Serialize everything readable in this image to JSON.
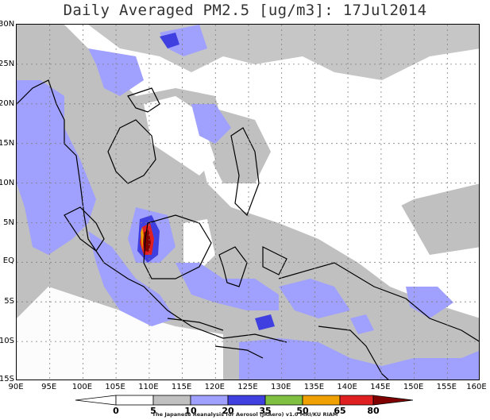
{
  "title": "Daily Averaged PM2.5 [ug/m3]: 17Jul2014",
  "map": {
    "lon_range": [
      90,
      160
    ],
    "lat_range": [
      -15,
      30
    ],
    "y_ticks": [
      "30N",
      "25N",
      "20N",
      "15N",
      "10N",
      "5N",
      "EQ",
      "5S",
      "10S",
      "15S"
    ],
    "x_ticks": [
      "90E",
      "95E",
      "100E",
      "105E",
      "110E",
      "115E",
      "120E",
      "125E",
      "130E",
      "135E",
      "140E",
      "145E",
      "150E",
      "155E",
      "160E"
    ],
    "grid": "dotted"
  },
  "colorbar": {
    "levels": [
      "0",
      "5",
      "10",
      "20",
      "35",
      "50",
      "65",
      "80"
    ],
    "colors": [
      "#ffffff",
      "#ffffff",
      "#c0c0c0",
      "#a0a0ff",
      "#4040e0",
      "#80c040",
      "#f0a000",
      "#e02020",
      "#800000"
    ]
  },
  "credit": "The Japanese Reanalysis for Aerosol (JRAero) v1.0 MRI/KU RIAM"
}
